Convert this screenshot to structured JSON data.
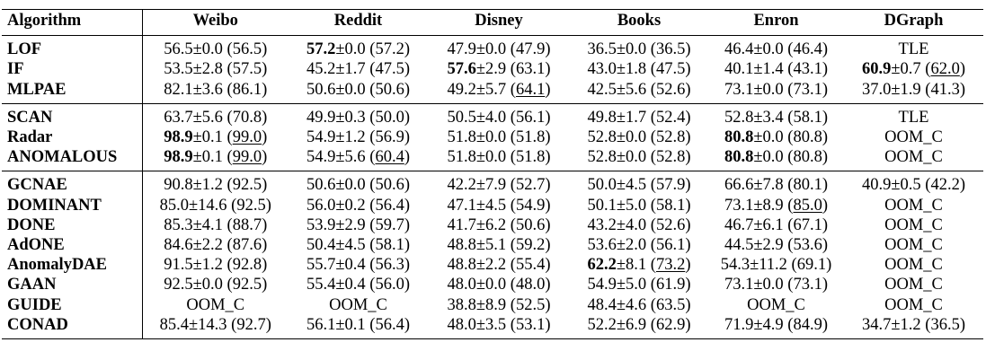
{
  "table": {
    "headers": [
      "Algorithm",
      "Weibo",
      "Reddit",
      "Disney",
      "Books",
      "Enron",
      "DGraph"
    ],
    "groups": [
      [
        {
          "algo": "LOF",
          "cells": [
            [
              {
                "t": "56.5±0.0 (56.5)"
              }
            ],
            [
              {
                "t": "57.2",
                "b": true
              },
              {
                "t": "±0.0 (57.2)"
              }
            ],
            [
              {
                "t": "47.9±0.0 (47.9)"
              }
            ],
            [
              {
                "t": "36.5±0.0 (36.5)"
              }
            ],
            [
              {
                "t": "46.4±0.0 (46.4)"
              }
            ],
            [
              {
                "t": "TLE"
              }
            ]
          ]
        },
        {
          "algo": "IF",
          "cells": [
            [
              {
                "t": "53.5±2.8 (57.5)"
              }
            ],
            [
              {
                "t": "45.2±1.7 (47.5)"
              }
            ],
            [
              {
                "t": "57.6",
                "b": true
              },
              {
                "t": "±2.9 (63.1)"
              }
            ],
            [
              {
                "t": "43.0±1.8 (47.5)"
              }
            ],
            [
              {
                "t": "40.1±1.4 (43.1)"
              }
            ],
            [
              {
                "t": "60.9",
                "b": true
              },
              {
                "t": "±0.7 ("
              },
              {
                "t": "62.0",
                "u": true
              },
              {
                "t": ")"
              }
            ]
          ]
        },
        {
          "algo": "MLPAE",
          "cells": [
            [
              {
                "t": "82.1±3.6 (86.1)"
              }
            ],
            [
              {
                "t": "50.6±0.0 (50.6)"
              }
            ],
            [
              {
                "t": "49.2±5.7 ("
              },
              {
                "t": "64.1",
                "u": true
              },
              {
                "t": ")"
              }
            ],
            [
              {
                "t": "42.5±5.6 (52.6)"
              }
            ],
            [
              {
                "t": "73.1±0.0 (73.1)"
              }
            ],
            [
              {
                "t": "37.0±1.9 (41.3)"
              }
            ]
          ]
        }
      ],
      [
        {
          "algo": "SCAN",
          "cells": [
            [
              {
                "t": "63.7±5.6 (70.8)"
              }
            ],
            [
              {
                "t": "49.9±0.3 (50.0)"
              }
            ],
            [
              {
                "t": "50.5±4.0 (56.1)"
              }
            ],
            [
              {
                "t": "49.8±1.7 (52.4)"
              }
            ],
            [
              {
                "t": "52.8±3.4 (58.1)"
              }
            ],
            [
              {
                "t": "TLE"
              }
            ]
          ]
        },
        {
          "algo": "Radar",
          "cells": [
            [
              {
                "t": "98.9",
                "b": true
              },
              {
                "t": "±0.1 ("
              },
              {
                "t": "99.0",
                "u": true
              },
              {
                "t": ")"
              }
            ],
            [
              {
                "t": "54.9±1.2 (56.9)"
              }
            ],
            [
              {
                "t": "51.8±0.0 (51.8)"
              }
            ],
            [
              {
                "t": "52.8±0.0 (52.8)"
              }
            ],
            [
              {
                "t": "80.8",
                "b": true
              },
              {
                "t": "±0.0 (80.8)"
              }
            ],
            [
              {
                "t": "OOM_C"
              }
            ]
          ]
        },
        {
          "algo": "ANOMALOUS",
          "cells": [
            [
              {
                "t": "98.9",
                "b": true
              },
              {
                "t": "±0.1 ("
              },
              {
                "t": "99.0",
                "u": true
              },
              {
                "t": ")"
              }
            ],
            [
              {
                "t": "54.9±5.6 ("
              },
              {
                "t": "60.4",
                "u": true
              },
              {
                "t": ")"
              }
            ],
            [
              {
                "t": "51.8±0.0 (51.8)"
              }
            ],
            [
              {
                "t": "52.8±0.0 (52.8)"
              }
            ],
            [
              {
                "t": "80.8",
                "b": true
              },
              {
                "t": "±0.0 (80.8)"
              }
            ],
            [
              {
                "t": "OOM_C"
              }
            ]
          ]
        }
      ],
      [
        {
          "algo": "GCNAE",
          "cells": [
            [
              {
                "t": "90.8±1.2 (92.5)"
              }
            ],
            [
              {
                "t": "50.6±0.0 (50.6)"
              }
            ],
            [
              {
                "t": "42.2±7.9 (52.7)"
              }
            ],
            [
              {
                "t": "50.0±4.5 (57.9)"
              }
            ],
            [
              {
                "t": "66.6±7.8 (80.1)"
              }
            ],
            [
              {
                "t": "40.9±0.5 (42.2)"
              }
            ]
          ]
        },
        {
          "algo": "DOMINANT",
          "cells": [
            [
              {
                "t": "85.0±14.6 (92.5)"
              }
            ],
            [
              {
                "t": "56.0±0.2 (56.4)"
              }
            ],
            [
              {
                "t": "47.1±4.5 (54.9)"
              }
            ],
            [
              {
                "t": "50.1±5.0 (58.1)"
              }
            ],
            [
              {
                "t": "73.1±8.9 ("
              },
              {
                "t": "85.0",
                "u": true
              },
              {
                "t": ")"
              }
            ],
            [
              {
                "t": "OOM_C"
              }
            ]
          ]
        },
        {
          "algo": "DONE",
          "cells": [
            [
              {
                "t": "85.3±4.1 (88.7)"
              }
            ],
            [
              {
                "t": "53.9±2.9 (59.7)"
              }
            ],
            [
              {
                "t": "41.7±6.2 (50.6)"
              }
            ],
            [
              {
                "t": "43.2±4.0 (52.6)"
              }
            ],
            [
              {
                "t": "46.7±6.1 (67.1)"
              }
            ],
            [
              {
                "t": "OOM_C"
              }
            ]
          ]
        },
        {
          "algo": "AdONE",
          "cells": [
            [
              {
                "t": "84.6±2.2 (87.6)"
              }
            ],
            [
              {
                "t": "50.4±4.5 (58.1)"
              }
            ],
            [
              {
                "t": "48.8±5.1 (59.2)"
              }
            ],
            [
              {
                "t": "53.6±2.0 (56.1)"
              }
            ],
            [
              {
                "t": "44.5±2.9 (53.6)"
              }
            ],
            [
              {
                "t": "OOM_C"
              }
            ]
          ]
        },
        {
          "algo": "AnomalyDAE",
          "cells": [
            [
              {
                "t": "91.5±1.2 (92.8)"
              }
            ],
            [
              {
                "t": "55.7±0.4 (56.3)"
              }
            ],
            [
              {
                "t": "48.8±2.2 (55.4)"
              }
            ],
            [
              {
                "t": "62.2",
                "b": true
              },
              {
                "t": "±8.1 ("
              },
              {
                "t": "73.2",
                "u": true
              },
              {
                "t": ")"
              }
            ],
            [
              {
                "t": "54.3±11.2 (69.1)"
              }
            ],
            [
              {
                "t": "OOM_C"
              }
            ]
          ]
        },
        {
          "algo": "GAAN",
          "cells": [
            [
              {
                "t": "92.5±0.0 (92.5)"
              }
            ],
            [
              {
                "t": "55.4±0.4 (56.0)"
              }
            ],
            [
              {
                "t": "48.0±0.0 (48.0)"
              }
            ],
            [
              {
                "t": "54.9±5.0 (61.9)"
              }
            ],
            [
              {
                "t": "73.1±0.0 (73.1)"
              }
            ],
            [
              {
                "t": "OOM_C"
              }
            ]
          ]
        },
        {
          "algo": "GUIDE",
          "cells": [
            [
              {
                "t": "OOM_C"
              }
            ],
            [
              {
                "t": "OOM_C"
              }
            ],
            [
              {
                "t": "38.8±8.9 (52.5)"
              }
            ],
            [
              {
                "t": "48.4±4.6 (63.5)"
              }
            ],
            [
              {
                "t": "OOM_C"
              }
            ],
            [
              {
                "t": "OOM_C"
              }
            ]
          ]
        },
        {
          "algo": "CONAD",
          "cells": [
            [
              {
                "t": "85.4±14.3 (92.7)"
              }
            ],
            [
              {
                "t": "56.1±0.1 (56.4)"
              }
            ],
            [
              {
                "t": "48.0±3.5 (53.1)"
              }
            ],
            [
              {
                "t": "52.2±6.9 (62.9)"
              }
            ],
            [
              {
                "t": "71.9±4.9 (84.9)"
              }
            ],
            [
              {
                "t": "34.7±1.2 (36.5)"
              }
            ]
          ]
        }
      ]
    ]
  }
}
